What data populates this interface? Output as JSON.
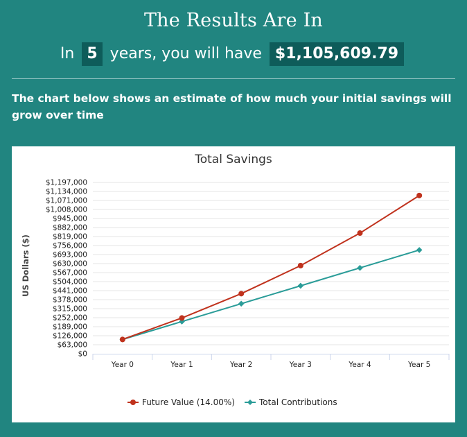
{
  "header": {
    "title": "The Results Are In",
    "prefix": "In",
    "years": "5",
    "middle": "years, you will have",
    "amount": "$1,105,609.79"
  },
  "description": "The chart below shows an estimate of how much your initial savings will grow over time",
  "colors": {
    "background": "#218580",
    "pill": "#0e5c5a",
    "future_value": "#c0321d",
    "contributions": "#2a9c98"
  },
  "chart_data": {
    "type": "line",
    "title": "Total Savings",
    "xlabel": "",
    "ylabel": "US Dollars ($)",
    "categories": [
      "Year 0",
      "Year 1",
      "Year 2",
      "Year 3",
      "Year 4",
      "Year 5"
    ],
    "ylim": [
      0,
      1197000
    ],
    "yticks": [
      "$0",
      "$63,000",
      "$126,000",
      "$189,000",
      "$252,000",
      "$315,000",
      "$378,000",
      "$441,000",
      "$504,000",
      "$567,000",
      "$630,000",
      "$693,000",
      "$756,000",
      "$819,000",
      "$882,000",
      "$945,000",
      "$1,008,000",
      "$1,071,000",
      "$1,134,000",
      "$1,197,000"
    ],
    "ytick_values": [
      0,
      63000,
      126000,
      189000,
      252000,
      315000,
      378000,
      441000,
      504000,
      567000,
      630000,
      693000,
      756000,
      819000,
      882000,
      945000,
      1008000,
      1071000,
      1134000,
      1197000
    ],
    "grid": true,
    "legend": "bottom",
    "series": [
      {
        "name": "Future Value (14.00%)",
        "marker": "circle",
        "values": [
          100000,
          250000,
          420000,
          616000,
          843000,
          1105610
        ]
      },
      {
        "name": "Total Contributions",
        "marker": "diamond",
        "values": [
          100000,
          225000,
          350000,
          475000,
          600000,
          725000
        ]
      }
    ]
  }
}
